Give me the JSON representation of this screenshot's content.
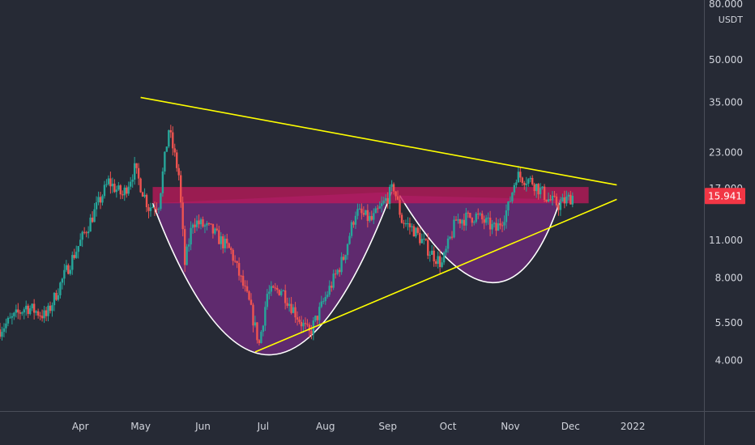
{
  "chart_data": {
    "type": "candlestick",
    "symbol_unit": "USDT",
    "scale": "log",
    "ylim": [
      3.0,
      80.0
    ],
    "y_ticks": [
      "80.000",
      "50.000",
      "35.000",
      "23.000",
      "17.000",
      "15.941",
      "11.000",
      "8.000",
      "5.500",
      "4.000"
    ],
    "y_tick_values": [
      80,
      50,
      35,
      23,
      17,
      15.941,
      11,
      8,
      5.5,
      4
    ],
    "x_ticks": [
      "Apr",
      "May",
      "Jun",
      "Jul",
      "Aug",
      "Sep",
      "Oct",
      "Nov",
      "Dec",
      "2022"
    ],
    "x_tick_dates": [
      "2021-04-01",
      "2021-05-01",
      "2021-06-01",
      "2021-07-01",
      "2021-08-01",
      "2021-09-01",
      "2021-10-01",
      "2021-11-01",
      "2021-12-01",
      "2022-01-01"
    ],
    "xlim": [
      "2021-02-20",
      "2022-02-05"
    ],
    "last_price": {
      "value": 15.941,
      "label": "15.941"
    },
    "price_path": [
      [
        "2021-02-20",
        5.2
      ],
      [
        "2021-03-05",
        6.3
      ],
      [
        "2021-03-15",
        5.8
      ],
      [
        "2021-03-25",
        8.5
      ],
      [
        "2021-04-05",
        12.5
      ],
      [
        "2021-04-15",
        18.0
      ],
      [
        "2021-04-22",
        16.0
      ],
      [
        "2021-04-28",
        20.0
      ],
      [
        "2021-05-05",
        14.5
      ],
      [
        "2021-05-10",
        15.0
      ],
      [
        "2021-05-15",
        28.0
      ],
      [
        "2021-05-20",
        19.0
      ],
      [
        "2021-05-23",
        9.0
      ],
      [
        "2021-05-27",
        13.0
      ],
      [
        "2021-06-05",
        12.0
      ],
      [
        "2021-06-15",
        10.0
      ],
      [
        "2021-06-24",
        6.5
      ],
      [
        "2021-06-29",
        4.6
      ],
      [
        "2021-07-03",
        7.0
      ],
      [
        "2021-07-10",
        7.3
      ],
      [
        "2021-07-20",
        5.5
      ],
      [
        "2021-07-24",
        5.0
      ],
      [
        "2021-08-01",
        6.8
      ],
      [
        "2021-08-10",
        9.5
      ],
      [
        "2021-08-16",
        14.0
      ],
      [
        "2021-08-24",
        13.0
      ],
      [
        "2021-08-30",
        15.0
      ],
      [
        "2021-09-04",
        17.2
      ],
      [
        "2021-09-08",
        13.0
      ],
      [
        "2021-09-14",
        12.0
      ],
      [
        "2021-09-22",
        10.0
      ],
      [
        "2021-09-28",
        9.0
      ],
      [
        "2021-10-05",
        13.0
      ],
      [
        "2021-10-15",
        13.5
      ],
      [
        "2021-10-25",
        12.0
      ],
      [
        "2021-10-31",
        14.5
      ],
      [
        "2021-11-04",
        19.0
      ],
      [
        "2021-11-12",
        18.0
      ],
      [
        "2021-11-20",
        15.5
      ],
      [
        "2021-11-25",
        14.8
      ],
      [
        "2021-12-02",
        15.941
      ]
    ],
    "overlays": {
      "upper_trendline": {
        "from": [
          "2021-05-01",
          36.5
        ],
        "to": [
          "2021-12-24",
          17.5
        ],
        "color": "#ffff00"
      },
      "lower_trendline": {
        "from": [
          "2021-06-27",
          4.3
        ],
        "to": [
          "2021-12-24",
          15.5
        ],
        "color": "#ffff00"
      },
      "resistance_zone": {
        "from": "2021-05-07",
        "to": "2021-12-10",
        "top": 17.2,
        "bottom": 15.0,
        "color": "#c2185b"
      },
      "cup": {
        "from": [
          "2021-05-07",
          15.0
        ],
        "bottom": [
          "2021-07-05",
          4.2
        ],
        "to": [
          "2021-09-03",
          16.5
        ],
        "fill": "#6a2a78",
        "stroke": "#ffffff"
      },
      "handle": {
        "from": [
          "2021-09-07",
          16.0
        ],
        "bottom": [
          "2021-10-23",
          7.7
        ],
        "to": [
          "2021-11-26",
          15.5
        ],
        "fill": "#6a2a78",
        "stroke": "#ffffff"
      }
    },
    "colors": {
      "background": "#262a35",
      "up": "#26a69a",
      "down": "#ef5350",
      "axis_text": "#d1d4dc",
      "last_price_bg": "#f23645"
    },
    "grid": false,
    "title": "",
    "xlabel": "",
    "ylabel": ""
  }
}
